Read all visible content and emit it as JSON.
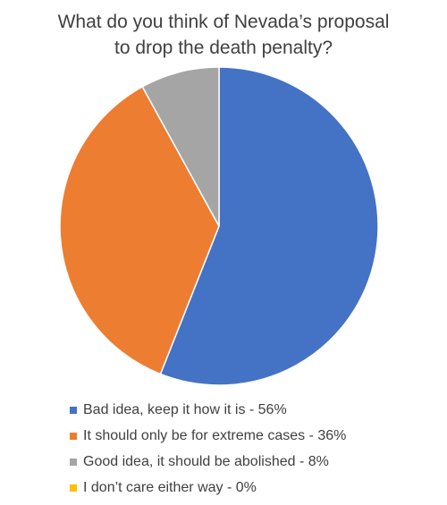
{
  "chart_data": {
    "type": "pie",
    "title": "What do you think of Nevada’s proposal\nto drop the death penalty?",
    "legend_position": "bottom",
    "slices": [
      {
        "label": "Bad idea, keep it how it is - 56%",
        "value": 56,
        "color": "#4472C4"
      },
      {
        "label": "It should only be for extreme cases - 36%",
        "value": 36,
        "color": "#ED7D31"
      },
      {
        "label": "Good idea, it should be abolished - 8%",
        "value": 8,
        "color": "#A5A5A5"
      },
      {
        "label": "I don’t care either way - 0%",
        "value": 0,
        "color": "#FFC000"
      }
    ]
  }
}
